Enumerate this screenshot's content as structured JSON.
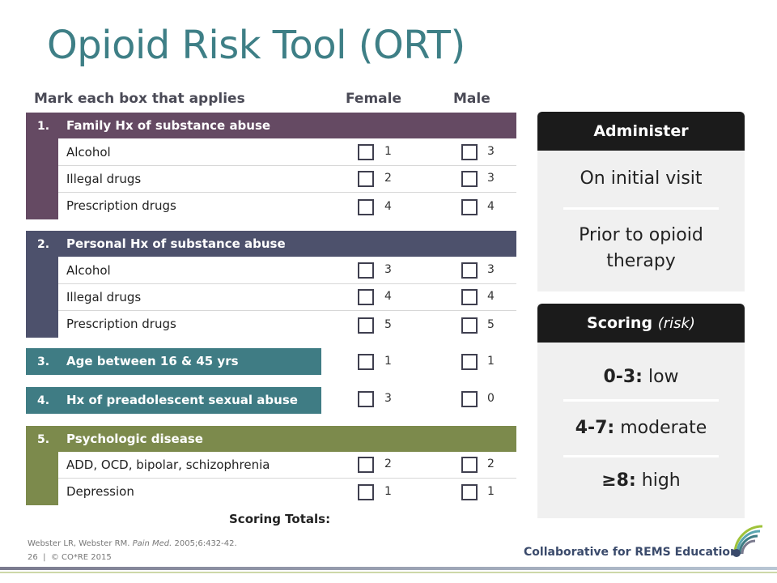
{
  "title": "Opioid Risk Tool (ORT)",
  "columns": {
    "mark": "Mark each box that applies",
    "female": "Female",
    "male": "Male"
  },
  "sections": [
    {
      "number": "1.",
      "heading": "Family Hx of substance abuse",
      "color": "#654a63",
      "rows": [
        {
          "label": "Alcohol",
          "female": "1",
          "male": "3"
        },
        {
          "label": "Illegal drugs",
          "female": "2",
          "male": "3"
        },
        {
          "label": "Prescription drugs",
          "female": "4",
          "male": "4"
        }
      ]
    },
    {
      "number": "2.",
      "heading": "Personal Hx of substance abuse",
      "color": "#4d516c",
      "rows": [
        {
          "label": "Alcohol",
          "female": "3",
          "male": "3"
        },
        {
          "label": "Illegal drugs",
          "female": "4",
          "male": "4"
        },
        {
          "label": "Prescription drugs",
          "female": "5",
          "male": "5"
        }
      ]
    },
    {
      "number": "3.",
      "heading": "Age between 16 & 45 yrs",
      "color": "#3f7c84",
      "female": "1",
      "male": "1"
    },
    {
      "number": "4.",
      "heading": "Hx of preadolescent sexual abuse",
      "color": "#3f7c84",
      "female": "3",
      "male": "0"
    },
    {
      "number": "5.",
      "heading": "Psychologic disease",
      "color": "#7c8a4c",
      "rows": [
        {
          "label": "ADD, OCD, bipolar, schizophrenia",
          "female": "2",
          "male": "2"
        },
        {
          "label": "Depression",
          "female": "1",
          "male": "1"
        }
      ]
    }
  ],
  "scoring_totals": "Scoring Totals:",
  "administer": {
    "heading": "Administer",
    "items": [
      "On initial visit",
      "Prior to opioid therapy"
    ]
  },
  "scoring": {
    "heading": "Scoring",
    "heading_note": "(risk)",
    "items": [
      {
        "range": "0-3:",
        "level": "low"
      },
      {
        "range": "4-7:",
        "level": "moderate"
      },
      {
        "range": "≥8:",
        "level": "high"
      }
    ]
  },
  "citation": {
    "authors": "Webster LR, Webster RM.",
    "journal": "Pain Med.",
    "details": "2005;6:432-42."
  },
  "footer": {
    "page": "26",
    "separator": "|",
    "copyright": "© CO*RE 2015",
    "org": "Collaborative for REMS Education"
  },
  "colors": {
    "title": "#3e7f86",
    "header_dark": "#1b1b1b",
    "card_bg": "#f0f0f0"
  }
}
